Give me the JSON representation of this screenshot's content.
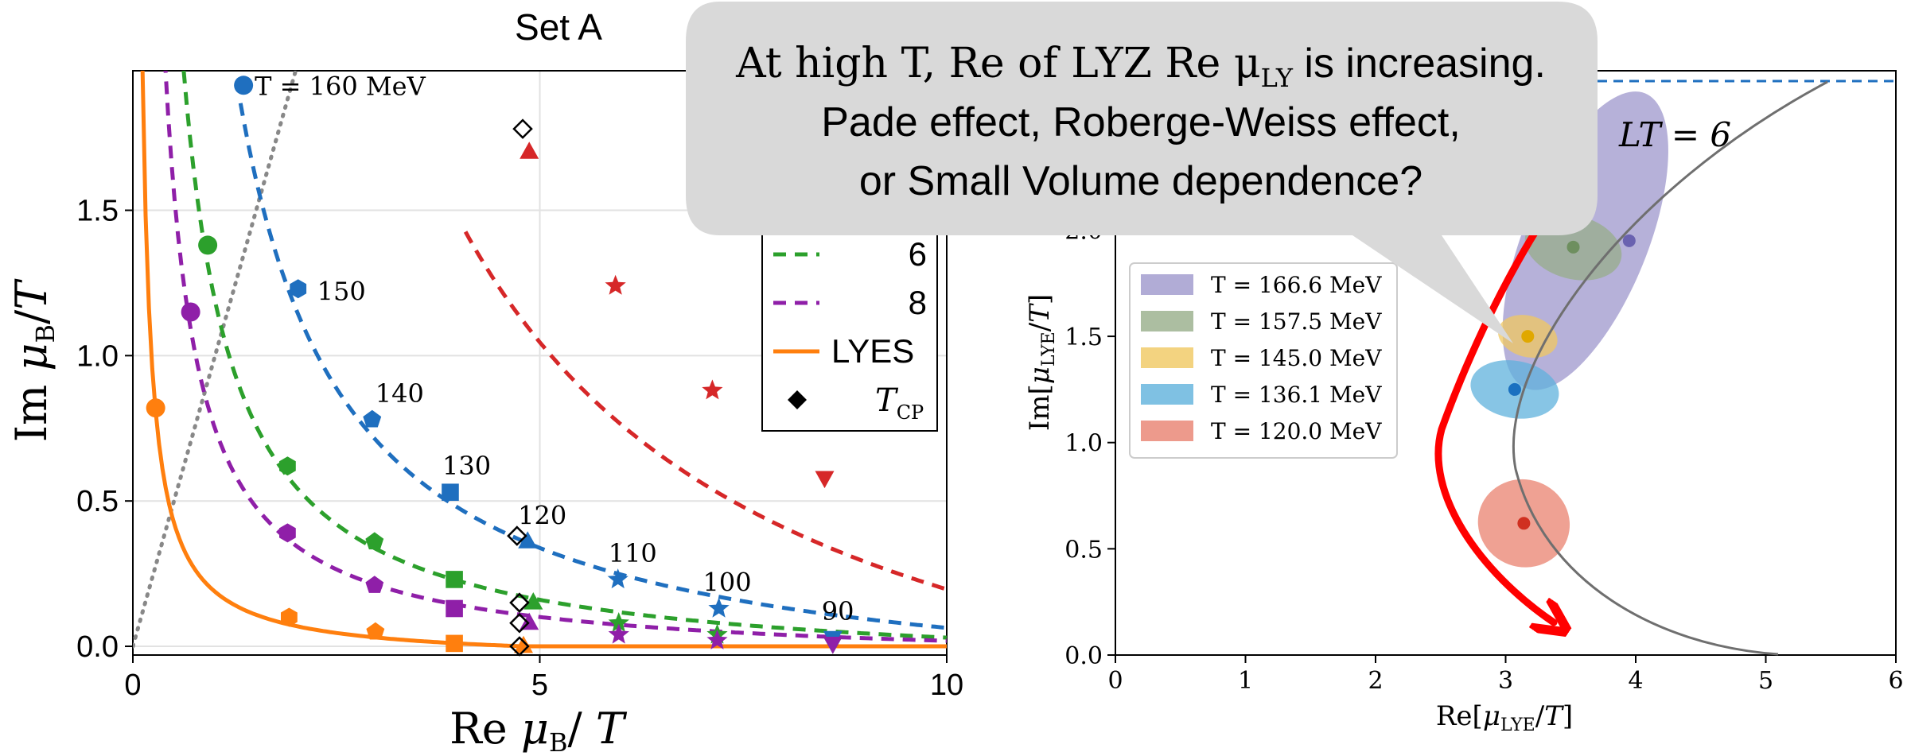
{
  "set_label": "Set A",
  "callout": {
    "line1": "At high T, Re of LYZ Re μ",
    "line1_sub": "LY",
    "line1_end": " is increasing.",
    "line2": "Pade effect, Roberge-Weiss effect,",
    "line3": "or Small Volume dependence?"
  },
  "chart_data": [
    {
      "type": "line",
      "title": "Set A",
      "xlabel": "Re μ_B / T",
      "ylabel": "Im μ_B / T",
      "xlim": [
        0,
        10
      ],
      "ylim": [
        -0.03,
        1.98
      ],
      "xticks": [
        "0",
        "5",
        "10"
      ],
      "yticks": [
        "0.0",
        "0.5",
        "1.0",
        "1.5"
      ],
      "grid": true,
      "legend_placement": "right",
      "legend_visible": [
        "6",
        "8",
        "LYES",
        "T_CP"
      ],
      "series": [
        {
          "name": "",
          "color": "#1f6fbf",
          "style": "dashed",
          "k": 2.75,
          "points": [
            [
              1.36,
              1.93
            ],
            [
              2.03,
              1.23
            ],
            [
              2.94,
              0.78
            ],
            [
              3.9,
              0.53
            ],
            [
              4.85,
              0.36
            ],
            [
              5.96,
              0.23
            ],
            [
              7.2,
              0.13
            ],
            [
              8.6,
              0.03
            ]
          ],
          "temps": [
            "T = 160 MeV",
            "150",
            "140",
            "130",
            "120",
            "110",
            "100",
            "90"
          ]
        },
        {
          "name": "",
          "color": "#d62728",
          "style": "dashed",
          "k": 8.5,
          "points": [
            [
              4.87,
              1.7
            ],
            [
              5.93,
              1.24
            ],
            [
              7.12,
              0.88
            ],
            [
              8.5,
              0.58
            ]
          ]
        },
        {
          "name": "6",
          "color": "#2ca02c",
          "style": "dashed",
          "k": 1.3,
          "points": [
            [
              0.92,
              1.38
            ],
            [
              1.9,
              0.62
            ],
            [
              2.97,
              0.36
            ],
            [
              3.95,
              0.23
            ],
            [
              4.92,
              0.15
            ],
            [
              5.97,
              0.08
            ],
            [
              7.18,
              0.04
            ],
            [
              8.6,
              0.01
            ]
          ]
        },
        {
          "name": "8",
          "color": "#8f1fa8",
          "style": "dashed",
          "k": 0.82,
          "points": [
            [
              0.71,
              1.15
            ],
            [
              1.9,
              0.39
            ],
            [
              2.97,
              0.21
            ],
            [
              3.95,
              0.13
            ],
            [
              4.87,
              0.08
            ],
            [
              5.97,
              0.04
            ],
            [
              7.18,
              0.02
            ],
            [
              8.6,
              0.01
            ]
          ]
        },
        {
          "name": "LYES",
          "color": "#ff7f0e",
          "style": "solid",
          "k": 0.24,
          "points": [
            [
              0.28,
              0.82
            ],
            [
              1.92,
              0.1
            ],
            [
              2.98,
              0.05
            ],
            [
              3.95,
              0.01
            ],
            [
              4.8,
              0.0
            ]
          ]
        }
      ],
      "tcp_points": [
        [
          4.72,
          0.38
        ],
        [
          4.75,
          0.15
        ],
        [
          4.75,
          0.08
        ],
        [
          4.75,
          0.0
        ],
        [
          4.79,
          1.78
        ]
      ],
      "tcp_label": "T",
      "tcp_sub": "CP"
    },
    {
      "type": "scatter",
      "xlabel": "Re[μ_LYE/T]",
      "ylabel": "Im[μ_LYE/T]",
      "xlim": [
        0,
        6
      ],
      "ylim": [
        0,
        2.75
      ],
      "xticks": [
        "0",
        "1",
        "2",
        "3",
        "4",
        "5",
        "6"
      ],
      "yticks": [
        "0.0",
        "0.5",
        "1.0",
        "1.5",
        "2.0"
      ],
      "annotation": "LT = 6",
      "legend_placement": "upper left",
      "series": [
        {
          "name": "T = 166.6 MeV",
          "color": "#9d97cc",
          "x": 3.95,
          "y": 1.95,
          "dot": "#6a62b0"
        },
        {
          "name": "T = 157.5 MeV",
          "color": "#97ae8a",
          "x": 3.52,
          "y": 1.92,
          "dot": "#6e8f5f"
        },
        {
          "name": "T = 145.0 MeV",
          "color": "#f0c860",
          "x": 3.17,
          "y": 1.5,
          "dot": "#e0a800"
        },
        {
          "name": "T = 136.1 MeV",
          "color": "#5fb2dc",
          "x": 3.07,
          "y": 1.25,
          "dot": "#1a70c0"
        },
        {
          "name": "T = 120.0 MeV",
          "color": "#e9816f",
          "x": 3.14,
          "y": 0.62,
          "dot": "#d03020"
        }
      ]
    }
  ]
}
